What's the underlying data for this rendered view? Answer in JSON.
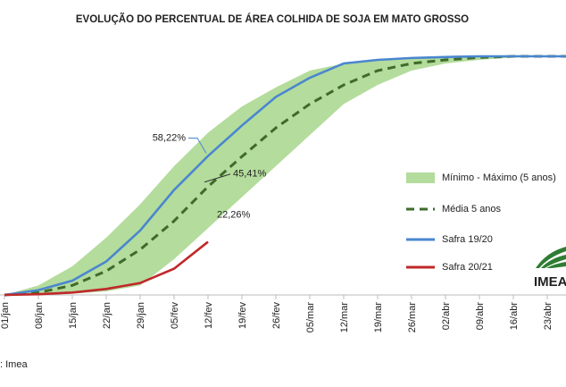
{
  "chart_data": {
    "type": "band-line",
    "title": "EVOLUÇÃO DO PERCENTUAL DE ÁREA COLHIDA DE SOJA EM MATO GROSSO",
    "source": ": Imea",
    "logo": "IMEA",
    "categories": [
      "01/jan",
      "08/jan",
      "15/jan",
      "22/jan",
      "29/jan",
      "05/fev",
      "12/fev",
      "19/fev",
      "26/fev",
      "05/mar",
      "12/mar",
      "19/mar",
      "26/mar",
      "02/abr",
      "09/abr",
      "16/abr",
      "23/abr"
    ],
    "ylim": [
      0,
      100
    ],
    "series": [
      {
        "name": "Mínimo - Máximo (5 anos)",
        "color": "#b4dc9c",
        "kind": "band",
        "max": [
          0,
          4,
          12,
          24,
          38,
          54,
          68,
          79,
          87,
          94,
          97,
          98.5,
          99.3,
          100,
          100,
          100,
          100
        ],
        "min": [
          0,
          0,
          0.5,
          1.5,
          4,
          15,
          28,
          41,
          54,
          67,
          80,
          88,
          94,
          97,
          98.5,
          99.5,
          100
        ]
      },
      {
        "name": "Média 5 anos",
        "color": "#3e6b2a",
        "kind": "dashed",
        "values": [
          0,
          1,
          4,
          10,
          19,
          31,
          45.41,
          58,
          70,
          80,
          88,
          94,
          97,
          98.5,
          99.5,
          100,
          100
        ],
        "value_labels": [
          null,
          null,
          null,
          null,
          null,
          null,
          "45,41%",
          null,
          null,
          null,
          null,
          null,
          null,
          null,
          null,
          null,
          null
        ]
      },
      {
        "name": "Safra 19/20",
        "color": "#4a86d0",
        "kind": "line",
        "values": [
          0,
          2,
          6,
          14,
          27,
          44,
          58.22,
          71,
          83,
          91,
          97,
          98.5,
          99.3,
          99.7,
          100,
          100,
          100
        ],
        "value_labels": [
          null,
          null,
          null,
          null,
          null,
          null,
          "58,22%",
          null,
          null,
          null,
          null,
          null,
          null,
          null,
          null,
          null,
          null
        ]
      },
      {
        "name": "Safra 20/21",
        "color": "#c0282a",
        "kind": "line",
        "values": [
          0,
          0.3,
          1,
          2.5,
          5,
          11,
          22.26,
          null,
          null,
          null,
          null,
          null,
          null,
          null,
          null,
          null,
          null
        ],
        "value_labels": [
          null,
          null,
          null,
          null,
          null,
          null,
          "22,26%",
          null,
          null,
          null,
          null,
          null,
          null,
          null,
          null,
          null,
          null
        ]
      }
    ]
  }
}
